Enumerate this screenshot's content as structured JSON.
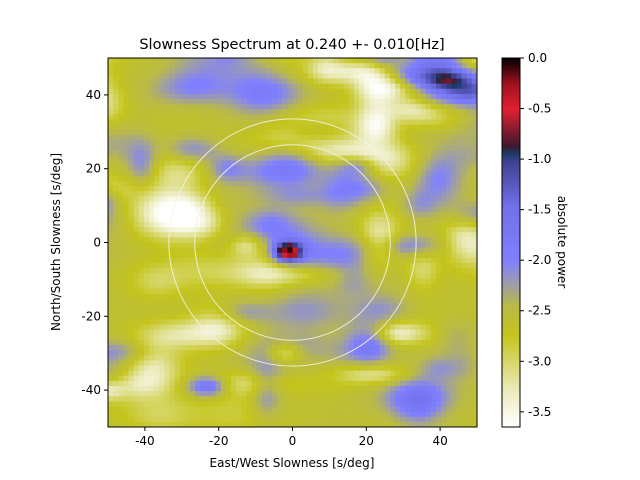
{
  "chart_data": {
    "type": "heatmap",
    "title": "Slowness Spectrum at 0.240 +- 0.010[Hz]",
    "xlabel": "East/West Slowness [s/deg]",
    "ylabel": "North/South Slowness [s/deg]",
    "xlim": [
      -50,
      50
    ],
    "ylim": [
      -50,
      50
    ],
    "xticks": [
      -40,
      -20,
      0,
      20,
      40
    ],
    "yticks": [
      -40,
      -20,
      0,
      20,
      40
    ],
    "colorbar": {
      "label": "absolute power",
      "range": [
        -3.65,
        0.0
      ],
      "ticks": [
        -3.5,
        -3.0,
        -2.5,
        -2.0,
        -1.5,
        -1.0,
        -0.5,
        0.0
      ],
      "colormap": "gist_stern-like (white → olive → grey → blue → navy → red → black)"
    },
    "peak": {
      "sx": -1,
      "sy": -2.5,
      "value": 0.0
    },
    "circles_slowness_radius": [
      26.5,
      33.5
    ],
    "secondary_features": [
      {
        "sx": -23,
        "sy": -39,
        "value": -1.4
      },
      {
        "sx": 18,
        "sy": 21,
        "value": -1.7
      },
      {
        "sx": 42,
        "sy": 44,
        "value": -1.9
      }
    ],
    "background_level": -2.6
  }
}
